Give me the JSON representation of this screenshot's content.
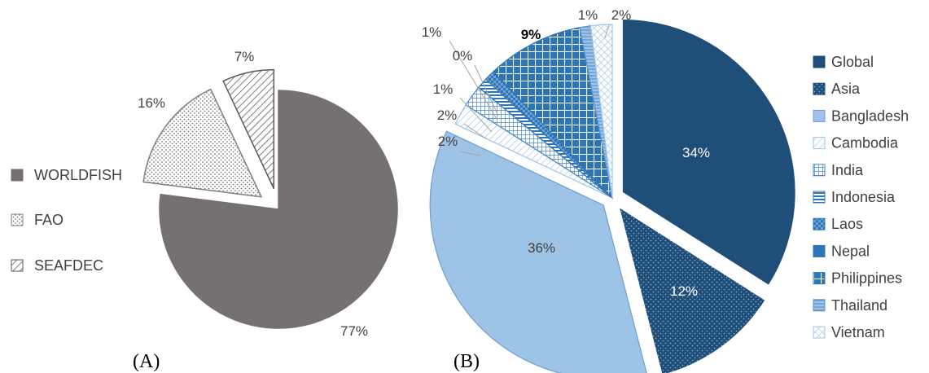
{
  "panels": {
    "a": "(A)",
    "b": "(B)"
  },
  "chart_data": [
    {
      "type": "pie",
      "categories": [
        "WORLDFISH",
        "FAO",
        "SEAFDEC"
      ],
      "values": [
        77,
        16,
        7
      ],
      "labels": [
        "77%",
        "16%",
        "7%"
      ],
      "exploded": [
        false,
        true,
        true
      ],
      "colors": [
        "#767171",
        "#ffffff",
        "#ffffff"
      ],
      "legend": "left"
    },
    {
      "type": "pie",
      "categories": [
        "Global",
        "Asia",
        "Bangladesh",
        "Cambodia",
        "India",
        "Indonesia",
        "Laos",
        "Nepal",
        "Philippines",
        "Thailand",
        "Vietnam"
      ],
      "values": [
        34,
        12,
        36,
        2,
        2,
        1,
        1,
        0,
        9,
        1,
        2
      ],
      "labels": [
        "34%",
        "12%",
        "36%",
        "2%",
        "2%",
        "1%",
        "1%",
        "0%",
        "9%",
        "1%",
        "2%"
      ],
      "exploded": [
        true,
        true,
        true,
        false,
        false,
        false,
        false,
        false,
        false,
        false,
        false
      ],
      "colors": [
        "#1f4e79",
        "#1f4e79",
        "#9dc3e6",
        "#bdd7ee",
        "#4a86c5",
        "#2e75b6",
        "#2e75b6",
        "#2e75b6",
        "#2e75b6",
        "#9dc3e6",
        "#bdd7ee"
      ],
      "legend": "right"
    }
  ]
}
